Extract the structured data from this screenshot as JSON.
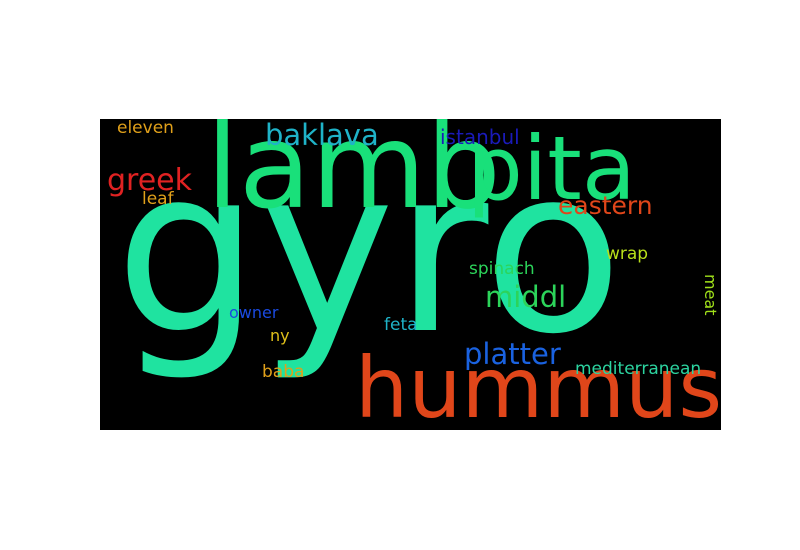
{
  "background": "#000000",
  "words": [
    {
      "text": "gyro",
      "color": "#1fe3a0"
    },
    {
      "text": "lamb",
      "color": "#19e07a"
    },
    {
      "text": "pita",
      "color": "#19e07a"
    },
    {
      "text": "hummus",
      "color": "#e0461a"
    },
    {
      "text": "baklava",
      "color": "#1fb3c8"
    },
    {
      "text": "greek",
      "color": "#e02222"
    },
    {
      "text": "eastern",
      "color": "#e0461a"
    },
    {
      "text": "middl",
      "color": "#2cd45a"
    },
    {
      "text": "platter",
      "color": "#1a62e0"
    },
    {
      "text": "istanbul",
      "color": "#1a1ab8"
    },
    {
      "text": "eleven",
      "color": "#e0a01a"
    },
    {
      "text": "leaf",
      "color": "#e0a01a"
    },
    {
      "text": "wrap",
      "color": "#b8e01a"
    },
    {
      "text": "meat",
      "color": "#a0e01a"
    },
    {
      "text": "spinach",
      "color": "#2cd45a"
    },
    {
      "text": "owner",
      "color": "#1a4ae0"
    },
    {
      "text": "feta",
      "color": "#1fb3c8"
    },
    {
      "text": "ny",
      "color": "#e0c01a"
    },
    {
      "text": "baba",
      "color": "#e0a01a"
    },
    {
      "text": "mediterranean",
      "color": "#2cd4a0"
    }
  ]
}
